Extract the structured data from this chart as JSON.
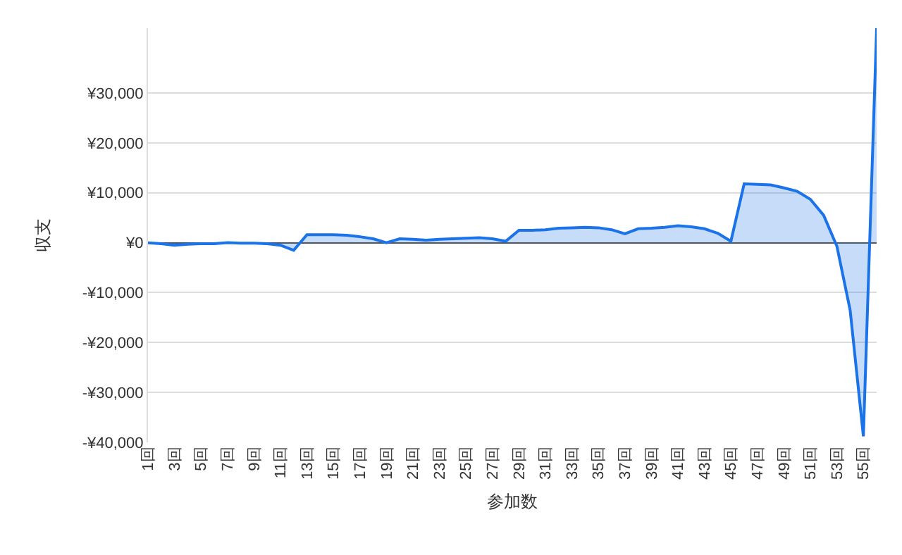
{
  "chart_data": {
    "type": "area",
    "xlabel": "参加数",
    "ylabel": "収支",
    "categories": [
      "1回",
      null,
      "3回",
      null,
      "5回",
      null,
      "7回",
      null,
      "9回",
      null,
      "11回",
      null,
      "13回",
      null,
      "15回",
      null,
      "17回",
      null,
      "19回",
      null,
      "21回",
      null,
      "23回",
      null,
      "25回",
      null,
      "27回",
      null,
      "29回",
      null,
      "31回",
      null,
      "33回",
      null,
      "35回",
      null,
      "37回",
      null,
      "39回",
      null,
      "41回",
      null,
      "43回",
      null,
      "45回",
      null,
      "47回",
      null,
      "49回",
      null,
      "51回",
      null,
      "53回",
      null,
      "55回",
      null
    ],
    "series": [
      {
        "color": "#1a73e8",
        "values": [
          0,
          -200,
          -500,
          -300,
          -200,
          -200,
          0,
          -100,
          -100,
          -200,
          -500,
          -1500,
          1600,
          1600,
          1600,
          1500,
          1200,
          800,
          0,
          800,
          700,
          500,
          700,
          800,
          900,
          1000,
          800,
          300,
          2500,
          2500,
          2600,
          2900,
          3000,
          3100,
          3000,
          2600,
          1800,
          2800,
          2900,
          3100,
          3400,
          3200,
          2800,
          1900,
          300,
          11800,
          11700,
          11600,
          11000,
          10300,
          8700,
          5500,
          -700,
          -13500,
          -38800,
          43000
        ]
      }
    ],
    "ylim": [
      -40000,
      43000
    ],
    "yticks": [
      {
        "value": -40000,
        "label": "-¥40,000"
      },
      {
        "value": -30000,
        "label": "-¥30,000"
      },
      {
        "value": -20000,
        "label": "-¥20,000"
      },
      {
        "value": -10000,
        "label": "-¥10,000"
      },
      {
        "value": 0,
        "label": "¥0"
      },
      {
        "value": 10000,
        "label": "¥10,000"
      },
      {
        "value": 20000,
        "label": "¥20,000"
      },
      {
        "value": 30000,
        "label": "¥30,000"
      }
    ],
    "grid": "y"
  }
}
